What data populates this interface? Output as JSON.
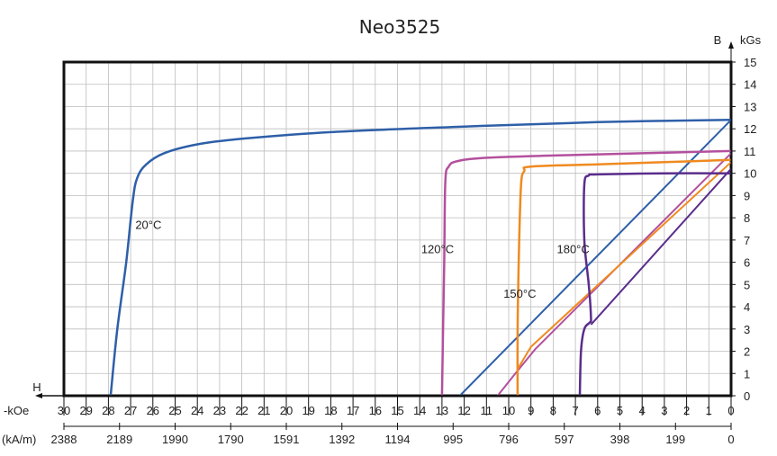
{
  "chart_data": {
    "type": "line",
    "title": "Neo3525",
    "y_axis": {
      "label": "B",
      "unit": "kGs",
      "range": [
        0,
        15
      ],
      "ticks": [
        "0",
        "1",
        "2",
        "3",
        "4",
        "5",
        "6",
        "7",
        "8",
        "9",
        "10",
        "11",
        "12",
        "13",
        "14",
        "15"
      ]
    },
    "x_axis": {
      "label": "H",
      "unit_koe": "-kOe",
      "unit_kam": "(kA/m)",
      "range": [
        30,
        0
      ],
      "ticks_koe": [
        "30",
        "29",
        "28",
        "27",
        "26",
        "25",
        "24",
        "23",
        "22",
        "21",
        "20",
        "19",
        "18",
        "17",
        "16",
        "15",
        "14",
        "13",
        "12",
        "11",
        "10",
        "9",
        "8",
        "7",
        "6",
        "5",
        "4",
        "3",
        "2",
        "1",
        "0"
      ],
      "ticks_kam": [
        {
          "label": "2388",
          "koe": 30
        },
        {
          "label": "2189",
          "koe": 27.5
        },
        {
          "label": "1990",
          "koe": 25
        },
        {
          "label": "1790",
          "koe": 22.5
        },
        {
          "label": "1591",
          "koe": 20
        },
        {
          "label": "1392",
          "koe": 17.5
        },
        {
          "label": "1194",
          "koe": 15
        },
        {
          "label": "995",
          "koe": 12.5
        },
        {
          "label": "796",
          "koe": 10
        },
        {
          "label": "597",
          "koe": 7.5
        },
        {
          "label": "398",
          "koe": 5
        },
        {
          "label": "199",
          "koe": 2.5
        },
        {
          "label": "0",
          "koe": 0
        }
      ]
    },
    "grid": true,
    "series": [
      {
        "name": "20°C",
        "color": "#2e5fa8",
        "label_at": [
          26.2,
          7.5
        ],
        "demag": [
          [
            27.9,
            0
          ],
          [
            27.6,
            3
          ],
          [
            27.2,
            6
          ],
          [
            26.9,
            8.8
          ],
          [
            26.7,
            9.8
          ],
          [
            26.3,
            10.4
          ],
          [
            25.5,
            10.9
          ],
          [
            24,
            11.3
          ],
          [
            22,
            11.55
          ],
          [
            18,
            11.85
          ],
          [
            12,
            12.1
          ],
          [
            6,
            12.3
          ],
          [
            0,
            12.4
          ]
        ],
        "recoil": [
          [
            12.2,
            0
          ],
          [
            0,
            12.4
          ]
        ]
      },
      {
        "name": "120°C",
        "color": "#b3509e",
        "label_at": [
          13.2,
          6.4
        ],
        "demag": [
          [
            13,
            0
          ],
          [
            12.95,
            3
          ],
          [
            12.9,
            6
          ],
          [
            12.85,
            9.6
          ],
          [
            12.7,
            10.3
          ],
          [
            12.3,
            10.55
          ],
          [
            11,
            10.7
          ],
          [
            8,
            10.8
          ],
          [
            4,
            10.9
          ],
          [
            0,
            11
          ]
        ],
        "recoil": [
          [
            10.5,
            0
          ],
          [
            9.7,
            1
          ],
          [
            8.8,
            2.1
          ],
          [
            0,
            10.9
          ]
        ]
      },
      {
        "name": "150°C",
        "color": "#ef8a20",
        "label_at": [
          9.5,
          4.4
        ],
        "demag": [
          [
            9.6,
            0
          ],
          [
            9.6,
            3
          ],
          [
            9.55,
            6
          ],
          [
            9.45,
            9.4
          ],
          [
            9.3,
            10.1
          ],
          [
            9,
            10.3
          ],
          [
            6,
            10.4
          ],
          [
            3,
            10.5
          ],
          [
            0,
            10.6
          ]
        ],
        "recoil": [
          [
            9.6,
            1.2
          ],
          [
            9,
            2.2
          ],
          [
            0,
            10.5
          ]
        ]
      },
      {
        "name": "180°C",
        "color": "#5a2d8c",
        "label_at": [
          7.1,
          6.4
        ],
        "demag": [
          [
            6.8,
            0
          ],
          [
            6.75,
            2
          ],
          [
            6.6,
            3
          ],
          [
            6.35,
            3.3
          ],
          [
            6.3,
            3.5
          ],
          [
            6.4,
            5
          ],
          [
            6.6,
            7
          ],
          [
            6.6,
            9.5
          ],
          [
            6.4,
            9.9
          ],
          [
            6,
            9.95
          ],
          [
            3,
            10
          ],
          [
            0,
            10
          ]
        ],
        "recoil": [
          [
            6.3,
            3.2
          ],
          [
            0,
            10.2
          ]
        ]
      }
    ]
  }
}
